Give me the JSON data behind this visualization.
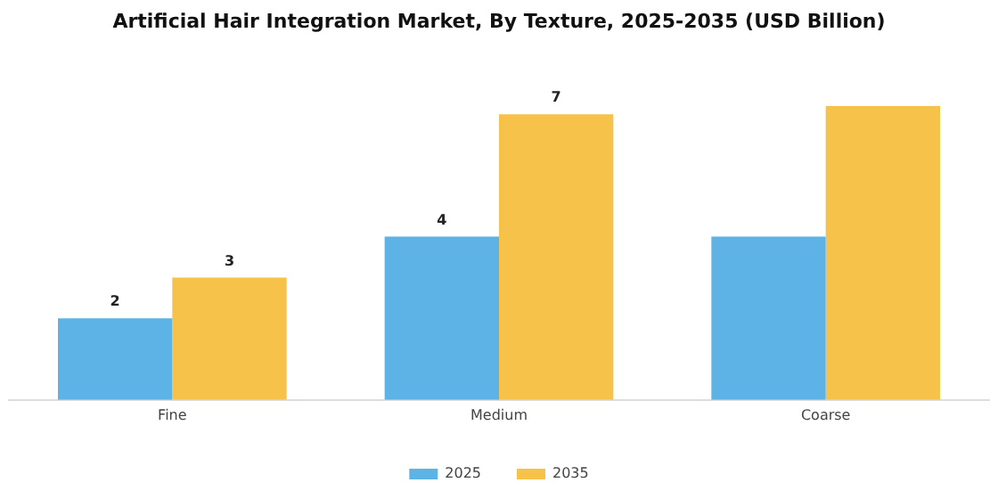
{
  "chart_data": {
    "type": "bar",
    "title": "Artificial Hair Integration Market, By Texture, 2025-2035 (USD Billion)",
    "categories": [
      "Fine",
      "Medium",
      "Coarse"
    ],
    "tick_labels": "x",
    "legend": "bottom",
    "grid": false,
    "series": [
      {
        "name": "2025",
        "color": "#5db3e6",
        "values": [
          2,
          4,
          4
        ],
        "value_labels": [
          "2",
          "4",
          null
        ]
      },
      {
        "name": "2035",
        "color": "#f6c24a",
        "values": [
          3,
          7,
          7.2
        ],
        "value_labels": [
          "3",
          "7",
          null
        ]
      }
    ]
  }
}
